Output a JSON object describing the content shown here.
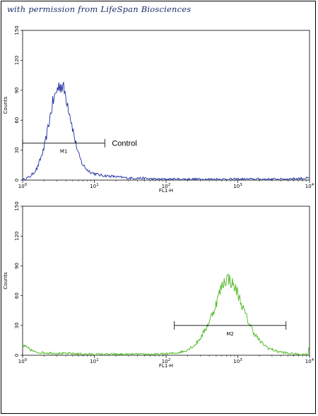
{
  "watermark": "with permission from LifeSpan Biosciences",
  "chart_data": [
    {
      "type": "line",
      "panel": "top",
      "xlabel": "FL1-H",
      "ylabel": "Counts",
      "x_scale": "log",
      "xlim": [
        1,
        10000
      ],
      "ylim": [
        0,
        150
      ],
      "x_ticks": [
        1,
        10,
        100,
        1000,
        10000
      ],
      "x_tick_labels": [
        {
          "base": "10",
          "exp": "0"
        },
        {
          "base": "10",
          "exp": "1"
        },
        {
          "base": "10",
          "exp": "2"
        },
        {
          "base": "10",
          "exp": "3"
        },
        {
          "base": "10",
          "exp": "4"
        }
      ],
      "y_ticks": [
        0,
        30,
        60,
        90,
        120,
        150
      ],
      "y_tick_labels": [
        "0",
        "30",
        "60",
        "90",
        "120",
        "150"
      ],
      "color": "#1f2fa0",
      "series": [
        {
          "x": [
            1.0,
            1.3,
            1.6,
            2.0,
            2.3,
            2.6,
            3.0,
            3.3,
            3.6,
            4.0,
            4.4,
            4.8,
            5.3,
            6.0,
            6.8,
            8.0,
            9.5,
            12,
            16,
            22,
            30,
            45,
            70,
            120,
            250,
            600,
            1500,
            4000,
            10000
          ],
          "y": [
            0,
            4,
            12,
            32,
            55,
            76,
            90,
            96,
            94,
            85,
            72,
            58,
            42,
            26,
            16,
            10,
            7,
            5,
            4,
            3,
            2,
            2,
            1,
            1,
            1,
            1,
            1,
            1,
            2
          ]
        }
      ],
      "markers": [
        {
          "label": "M1",
          "x_start": 1.0,
          "x_end": 14,
          "y": 37
        }
      ],
      "annotations": [
        {
          "text": "Control"
        }
      ]
    },
    {
      "type": "line",
      "panel": "bottom",
      "xlabel": "FL1-H",
      "ylabel": "Counts",
      "x_scale": "log",
      "xlim": [
        1,
        10000
      ],
      "ylim": [
        0,
        150
      ],
      "x_ticks": [
        1,
        10,
        100,
        1000,
        10000
      ],
      "x_tick_labels": [
        {
          "base": "10",
          "exp": "0"
        },
        {
          "base": "10",
          "exp": "1"
        },
        {
          "base": "10",
          "exp": "2"
        },
        {
          "base": "10",
          "exp": "3"
        },
        {
          "base": "10",
          "exp": "4"
        }
      ],
      "y_ticks": [
        0,
        30,
        60,
        90,
        120,
        150
      ],
      "y_tick_labels": [
        "0",
        "30",
        "60",
        "90",
        "120",
        "150"
      ],
      "color": "#49b81e",
      "series": [
        {
          "x": [
            1.0,
            1.5,
            3,
            10,
            30,
            80,
            130,
            180,
            250,
            320,
            400,
            480,
            550,
            620,
            700,
            780,
            870,
            950,
            1050,
            1200,
            1400,
            1700,
            2100,
            2700,
            3500,
            5000,
            7000,
            9500,
            10000
          ],
          "y": [
            10,
            3,
            2,
            1,
            1,
            1,
            2,
            4,
            10,
            20,
            34,
            48,
            62,
            72,
            78,
            76,
            70,
            66,
            58,
            46,
            34,
            22,
            13,
            7,
            4,
            2,
            1,
            1,
            10
          ]
        }
      ],
      "markers": [
        {
          "label": "M2",
          "x_start": 130,
          "x_end": 4700,
          "y": 30
        }
      ],
      "annotations": []
    }
  ]
}
